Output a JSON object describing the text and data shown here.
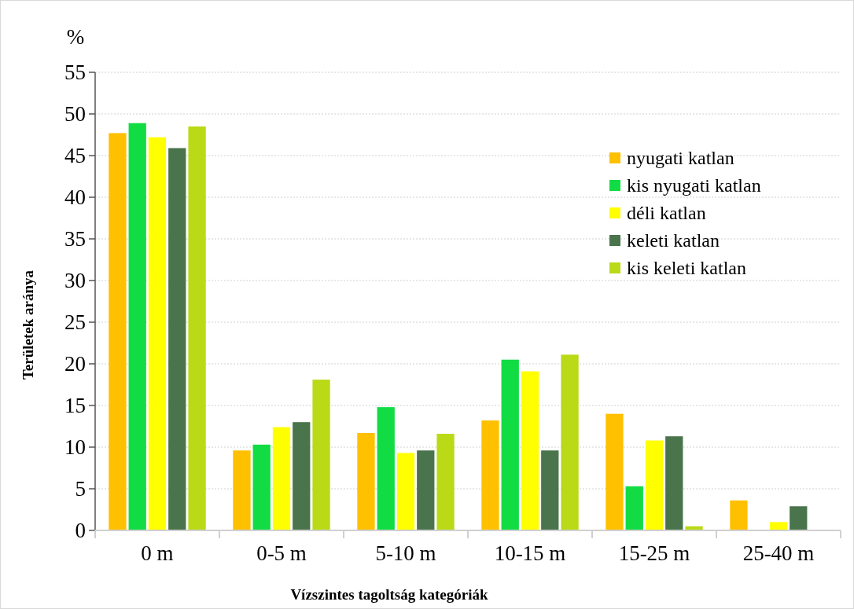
{
  "chart_data": {
    "type": "bar",
    "xlabel": "Vízszintes tagoltság kategóriák",
    "ylabel": "Területek aránya",
    "annotations": [
      "%"
    ],
    "categories": [
      "0 m",
      "0-5 m",
      "5-10 m",
      "10-15 m",
      "15-25 m",
      "25-40 m"
    ],
    "series": [
      {
        "name": "nyugati katlan",
        "color": "#ffc000",
        "values": [
          47.7,
          9.6,
          11.7,
          13.2,
          14.0,
          3.6
        ]
      },
      {
        "name": "kis nyugati katlan",
        "color": "#12dc44",
        "values": [
          48.9,
          10.3,
          14.8,
          20.5,
          5.3,
          0
        ]
      },
      {
        "name": "déli katlan",
        "color": "#ffff00",
        "values": [
          47.2,
          12.4,
          9.3,
          19.1,
          10.8,
          1.0
        ]
      },
      {
        "name": "keleti katlan",
        "color": "#4a744c",
        "values": [
          45.9,
          13.0,
          9.6,
          9.6,
          11.3,
          2.9
        ]
      },
      {
        "name": "kis keleti katlan",
        "color": "#bad916",
        "values": [
          48.5,
          18.1,
          11.6,
          21.1,
          0.5,
          0
        ]
      }
    ],
    "ylim": [
      0,
      55
    ],
    "yticks": [
      0,
      5,
      10,
      15,
      20,
      25,
      30,
      35,
      40,
      45,
      50,
      55
    ],
    "grid": "y",
    "legend": "top right"
  }
}
